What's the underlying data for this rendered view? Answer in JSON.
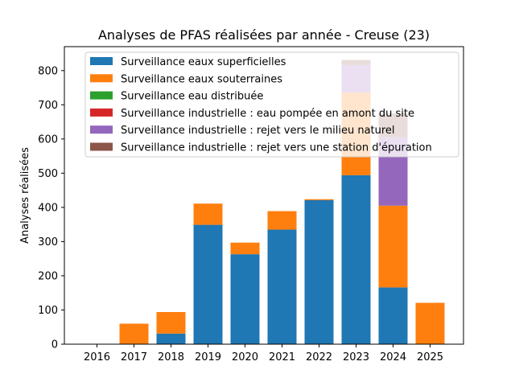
{
  "chart_data": {
    "type": "bar",
    "stacked": true,
    "title": "Analyses de PFAS réalisées par année - Creuse (23)",
    "xlabel": "",
    "ylabel": "Analyses réalisées",
    "categories": [
      "2016",
      "2017",
      "2018",
      "2019",
      "2020",
      "2021",
      "2022",
      "2023",
      "2024",
      "2025"
    ],
    "ylim": [
      0,
      870
    ],
    "yticks": [
      0,
      100,
      200,
      300,
      400,
      500,
      600,
      700,
      800
    ],
    "legend_position": "top",
    "series": [
      {
        "name": "Surveillance eaux superficielles",
        "color": "#1f77b4",
        "values": [
          0,
          0,
          31,
          349,
          263,
          335,
          421,
          494,
          166,
          0
        ]
      },
      {
        "name": "Surveillance eaux souterraines",
        "color": "#ff7f0e",
        "values": [
          0,
          60,
          63,
          62,
          34,
          54,
          3,
          242,
          239,
          121
        ]
      },
      {
        "name": "Surveillance eau distribuée",
        "color": "#2ca02c",
        "values": [
          0,
          0,
          0,
          0,
          0,
          0,
          0,
          0,
          0,
          0
        ]
      },
      {
        "name": "Surveillance industrielle : eau pompée en amont du site",
        "color": "#d62728",
        "values": [
          0,
          0,
          0,
          0,
          0,
          0,
          0,
          0,
          0,
          0
        ]
      },
      {
        "name": "Surveillance industrielle : rejet vers le milieu naturel",
        "color": "#9467bd",
        "values": [
          0,
          0,
          0,
          0,
          0,
          0,
          0,
          80,
          200,
          0
        ]
      },
      {
        "name": "Surveillance industrielle : rejet vers une station d'épuration",
        "color": "#8c564b",
        "values": [
          0,
          0,
          0,
          0,
          0,
          0,
          0,
          15,
          70,
          0
        ]
      }
    ]
  }
}
